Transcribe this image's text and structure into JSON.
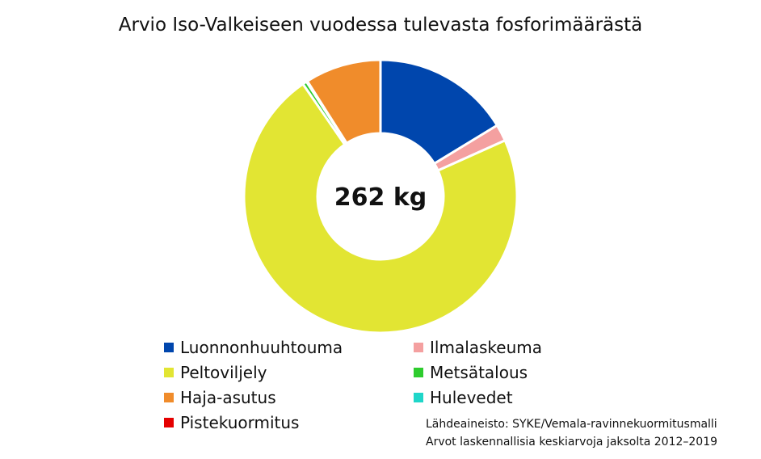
{
  "chart_data": {
    "type": "pie",
    "title": "Arvio Iso-Valkeiseen vuodessa tulevasta fosforimäärästä",
    "center_label": "262 kg",
    "unit": "kg",
    "total": 262,
    "slices": [
      {
        "label": "Luonnonhuuhtouma",
        "value": 42.7,
        "color": "#0046ad"
      },
      {
        "label": "Ilmalaskeuma",
        "value": 5.2,
        "color": "#f4a0a0"
      },
      {
        "label": "Peltoviljely",
        "value": 188.9,
        "color": "#e2e533"
      },
      {
        "label": "Metsätalous",
        "value": 1.3,
        "color": "#2ecc2e"
      },
      {
        "label": "Hulevedet",
        "value": 0.3,
        "color": "#1fd6c9"
      },
      {
        "label": "Haja-asutus",
        "value": 23.6,
        "color": "#f08c2b"
      },
      {
        "label": "Pistekuormitus",
        "value": 0,
        "color": "#e50000"
      }
    ],
    "legend": {
      "placement": "bottom",
      "columns": [
        [
          "Luonnonhuuhtouma",
          "Peltoviljely",
          "Haja-asutus",
          "Pistekuormitus"
        ],
        [
          "Ilmalaskeuma",
          "Metsätalous",
          "Hulevedet"
        ]
      ]
    }
  },
  "footnotes": {
    "source": "Lähdeaineisto: SYKE/Vemala-ravinnekuormitusmalli",
    "period": "Arvot laskennallisia keskiarvoja jaksolta 2012–2019"
  }
}
